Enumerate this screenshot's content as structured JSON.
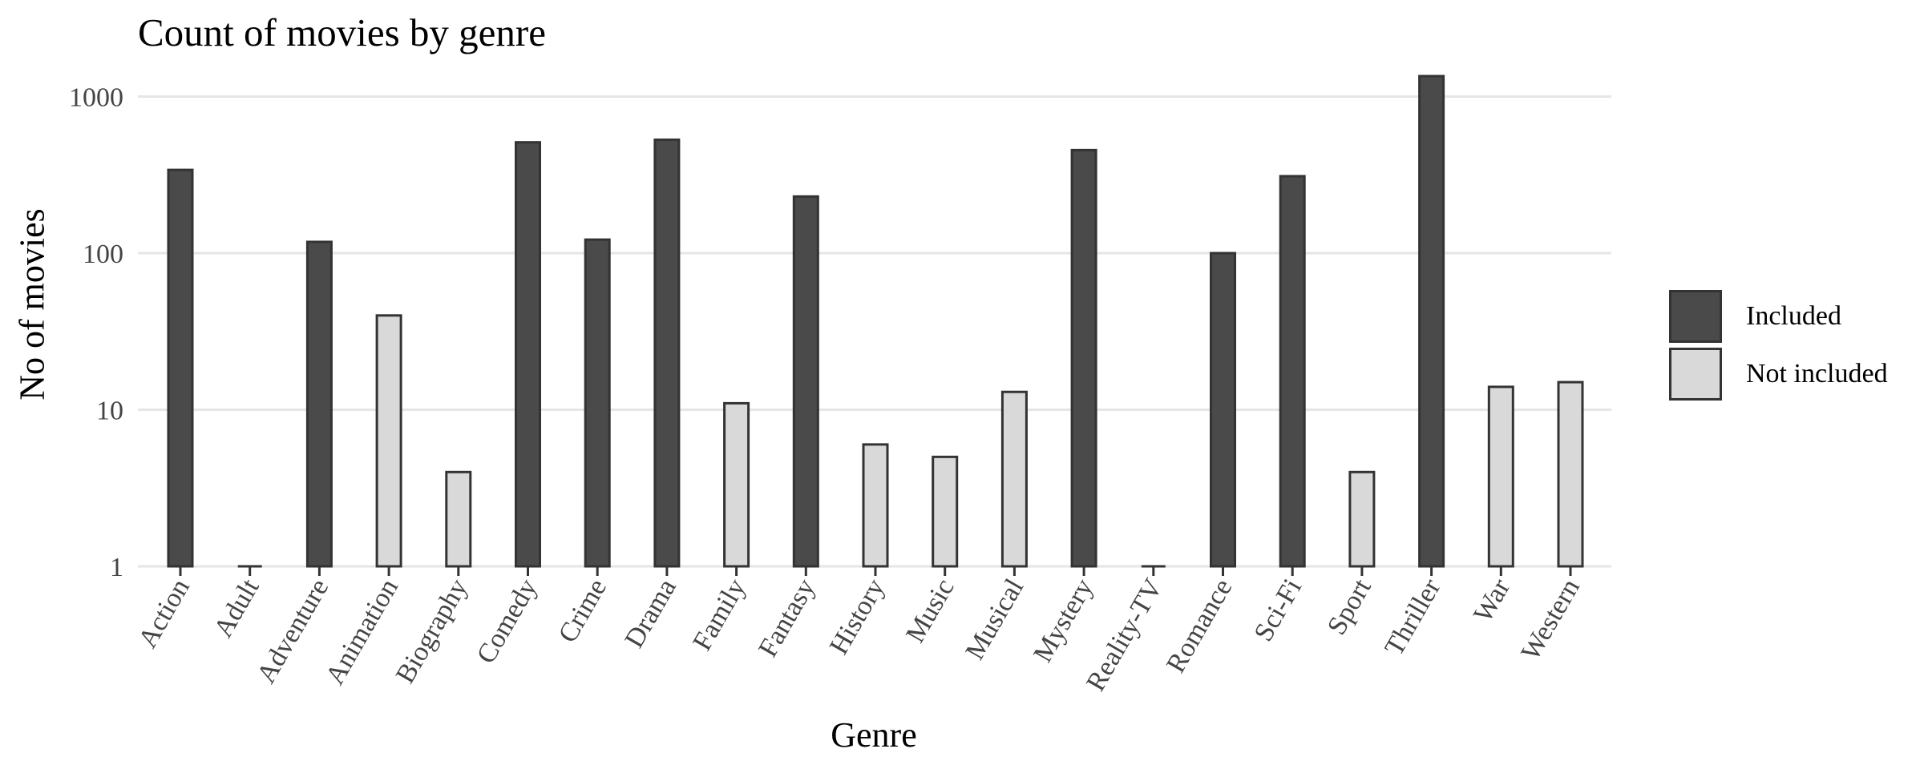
{
  "chart_data": {
    "type": "bar",
    "title": "Count of movies by genre",
    "xlabel": "Genre",
    "ylabel": "No of movies",
    "yscale": "log10",
    "ylim": [
      1,
      1400
    ],
    "yticks": [
      1,
      10,
      100,
      1000
    ],
    "ytick_labels": [
      "1",
      "10",
      "100",
      "1000"
    ],
    "grid": "horizontal major",
    "legend_position": "right",
    "categories": [
      "Action",
      "Adult",
      "Adventure",
      "Animation",
      "Biography",
      "Comedy",
      "Crime",
      "Drama",
      "Family",
      "Fantasy",
      "History",
      "Music",
      "Musical",
      "Mystery",
      "Reality-TV",
      "Romance",
      "Sci-Fi",
      "Sport",
      "Thriller",
      "War",
      "Western"
    ],
    "values": [
      340,
      1,
      118,
      40,
      4,
      510,
      122,
      530,
      11,
      230,
      6,
      5,
      13,
      455,
      1,
      100,
      310,
      4,
      1350,
      14,
      15
    ],
    "included": [
      true,
      false,
      true,
      false,
      false,
      true,
      true,
      true,
      false,
      true,
      false,
      false,
      false,
      true,
      false,
      true,
      true,
      false,
      true,
      false,
      false
    ],
    "legend": [
      {
        "label": "Included",
        "color": "#4a4a4a"
      },
      {
        "label": "Not included",
        "color": "#d9d9d9"
      }
    ],
    "colors": {
      "included": "#4a4a4a",
      "not_included": "#d9d9d9",
      "bar_outline": "#333333",
      "grid": "#e6e6e6",
      "tick_label": "#444444"
    }
  }
}
